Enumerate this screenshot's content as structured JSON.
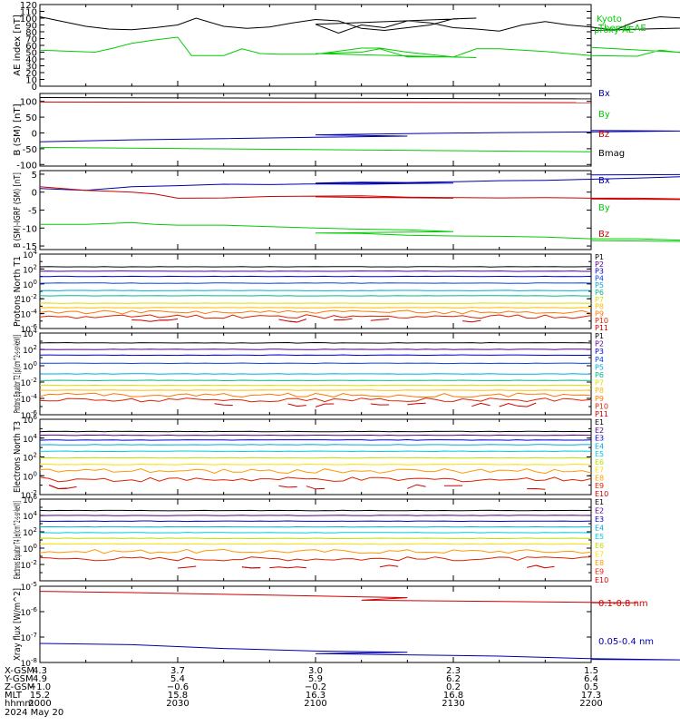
{
  "colors": {
    "black": "#000000",
    "green": "#00cc00",
    "blue": "#0000aa",
    "red": "#cc0000",
    "p_colors": [
      "#000000",
      "#550088",
      "#0000cc",
      "#0044ee",
      "#00aadd",
      "#00bb88",
      "#dddd00",
      "#ffbb00",
      "#ff7700",
      "#dd2200",
      "#cc0000"
    ],
    "e_colors": [
      "#000000",
      "#550088",
      "#0000cc",
      "#00aadd",
      "#00ccdd",
      "#bbdd00",
      "#ffdd00",
      "#ff9900",
      "#dd2200",
      "#cc0000"
    ]
  },
  "chart_data": [
    {
      "type": "line",
      "ylabel": "AE index [nT]",
      "ylim": [
        0,
        120
      ],
      "yticks": [
        "0",
        "10",
        "20",
        "30",
        "40",
        "50",
        "60",
        "70",
        "80",
        "90",
        "100",
        "110",
        "120"
      ],
      "legend": [
        "Kyoto proxy AE",
        "Themis AE"
      ],
      "series": [
        {
          "name": "Kyoto proxy AE",
          "x": [
            2000,
            2008,
            2012,
            2016,
            2020,
            2025,
            2030,
            2033,
            2040,
            2044,
            2048,
            2052,
            2060,
            2070,
            2074,
            2080,
            2090,
            2095,
            2100,
            2110,
            2114,
            2120,
            2130,
            2135,
            2140,
            2150,
            2155,
            2160,
            2170,
            2175,
            2180,
            2190,
            2195,
            2200
          ],
          "values": [
            53,
            51,
            50,
            56,
            63,
            68,
            72,
            45,
            45,
            55,
            48,
            47,
            47,
            56,
            56,
            50,
            43,
            42,
            48,
            50,
            55,
            43,
            43,
            55,
            55,
            51,
            48,
            45,
            44,
            53,
            49,
            44,
            44,
            57
          ]
        },
        {
          "name": "Themis AE",
          "x": [
            2000,
            2005,
            2010,
            2015,
            2020,
            2025,
            2030,
            2034,
            2040,
            2045,
            2050,
            2055,
            2060,
            2065,
            2070,
            2075,
            2080,
            2085,
            2090,
            2095,
            2100,
            2105,
            2110,
            2115,
            2120,
            2125,
            2130,
            2135,
            2140,
            2145,
            2150,
            2155,
            2160,
            2165,
            2170,
            2175,
            2180,
            2185,
            2190,
            2195,
            2200
          ],
          "values": [
            102,
            95,
            88,
            84,
            83,
            86,
            90,
            100,
            88,
            85,
            87,
            93,
            98,
            96,
            85,
            82,
            86,
            90,
            99,
            100,
            91,
            78,
            90,
            86,
            96,
            93,
            86,
            84,
            81,
            90,
            95,
            90,
            87,
            82,
            96,
            102,
            100,
            99,
            93,
            88,
            82
          ]
        }
      ]
    },
    {
      "type": "line",
      "ylabel": "B (SM) [nT]",
      "ylim": [
        -105,
        125
      ],
      "yticks": [
        "-100",
        "-50",
        "0",
        "50",
        "100"
      ],
      "legend": [
        "Bx",
        "By",
        "Bz",
        "Bmag"
      ],
      "series": [
        {
          "name": "Bx",
          "x": [
            2000,
            2020,
            2040,
            2060,
            2080,
            2100,
            2120,
            2140,
            2160,
            2180,
            2200
          ],
          "values": [
            -28,
            -22,
            -18,
            -14,
            -10,
            -6,
            -2,
            1,
            3,
            6,
            8
          ]
        },
        {
          "name": "By",
          "x": [
            2000,
            2200
          ],
          "values": [
            -46,
            -60
          ]
        },
        {
          "name": "Bz",
          "x": [
            2000,
            2200
          ],
          "values": [
            98,
            96
          ]
        },
        {
          "name": "Bmag",
          "x": [
            2000,
            2200
          ],
          "values": [
            112,
            108
          ]
        }
      ]
    },
    {
      "type": "line",
      "ylabel": "B (SM)-IGRF (SM) [nT]",
      "ylim": [
        -16,
        6
      ],
      "yticks": [
        "-15",
        "-10",
        "-5",
        "0",
        "5"
      ],
      "legend": [
        "Bx",
        "By",
        "Bz"
      ],
      "series": [
        {
          "name": "Bx",
          "x": [
            2000,
            2010,
            2020,
            2030,
            2040,
            2050,
            2060,
            2070,
            2080,
            2090,
            2100,
            2110,
            2120,
            2130,
            2140,
            2150,
            2160,
            2170,
            2180,
            2190,
            2195,
            2200
          ],
          "values": [
            1,
            0.5,
            1.5,
            1.8,
            2.2,
            2.1,
            2.3,
            2.2,
            2.4,
            2.5,
            2.5,
            2.8,
            2.7,
            2.9,
            3.2,
            3.3,
            3.6,
            3.9,
            4.3,
            4.5,
            5,
            4.8
          ]
        },
        {
          "name": "By",
          "x": [
            2000,
            2010,
            2020,
            2025,
            2030,
            2040,
            2050,
            2060,
            2070,
            2080,
            2090,
            2100,
            2110,
            2120,
            2130,
            2140,
            2150,
            2160,
            2170,
            2180,
            2190,
            2195,
            2200
          ],
          "values": [
            -9,
            -9,
            -8.5,
            -9,
            -9.2,
            -9.2,
            -9.6,
            -10,
            -10.3,
            -10.5,
            -11,
            -11.4,
            -11.5,
            -12,
            -12.2,
            -12.3,
            -12.5,
            -13,
            -13,
            -13.4,
            -13.6,
            -13.9,
            -13.5
          ]
        },
        {
          "name": "Bz",
          "x": [
            2000,
            2010,
            2020,
            2025,
            2030,
            2040,
            2050,
            2060,
            2070,
            2080,
            2090,
            2100,
            2110,
            2120,
            2130,
            2140,
            2150,
            2160,
            2170,
            2180,
            2190,
            2195,
            2200
          ],
          "values": [
            1.5,
            0.5,
            0,
            -0.5,
            -1.7,
            -1.6,
            -1.2,
            -1.1,
            -1,
            -1.4,
            -1.7,
            -1.3,
            -1.5,
            -1.4,
            -1.5,
            -1.6,
            -1.5,
            -1.7,
            -1.7,
            -1.9,
            -1.8,
            -2.2,
            -1.9
          ]
        }
      ]
    },
    {
      "type": "line",
      "ylabel": "Protons North T1",
      "yscale": "log",
      "ylim": [
        -6,
        4
      ],
      "yticks": [
        "10^-6",
        "10^-4",
        "10^-2",
        "10^0",
        "10^2",
        "10^4"
      ],
      "legend": [
        "P1",
        "P2",
        "P3",
        "P4",
        "P5",
        "P6",
        "P7",
        "P8",
        "P9",
        "P10",
        "P11"
      ],
      "series_log10_levels": [
        2.3,
        1.7,
        1.0,
        0.1,
        -0.9,
        -1.6,
        -2.6,
        -3.2,
        -3.8,
        -4.4,
        -4.9
      ]
    },
    {
      "type": "line",
      "ylabel": "Protons Equator T2 [p/(cm^2-s-sr-keV)]",
      "yscale": "log",
      "ylim": [
        -6,
        4
      ],
      "yticks": [
        "10^-6",
        "10^-4",
        "10^-2",
        "10^0",
        "10^2",
        "10^4"
      ],
      "legend": [
        "P1",
        "P2",
        "P3",
        "P4",
        "P5",
        "P6",
        "P7",
        "P8",
        "P9",
        "P10",
        "P11"
      ],
      "series_log10_levels": [
        2.8,
        2.0,
        1.3,
        0.3,
        -1.0,
        -1.8,
        -2.4,
        -3.0,
        -3.6,
        -4.2,
        -4.8
      ]
    },
    {
      "type": "line",
      "ylabel": "Electrons North T3",
      "yscale": "log",
      "ylim": [
        -2,
        6
      ],
      "yticks": [
        "10^-2",
        "10^0",
        "10^2",
        "10^4",
        "10^6"
      ],
      "legend": [
        "E1",
        "E2",
        "E3",
        "E4",
        "E5",
        "E6",
        "E7",
        "E8",
        "E9",
        "E10"
      ],
      "series_log10_levels": [
        4.7,
        4.3,
        3.8,
        3.3,
        2.6,
        1.9,
        1.2,
        0.5,
        -0.4,
        -1.2
      ]
    },
    {
      "type": "line",
      "ylabel": "Electrons Equator T4 [e/(cm^2-s-sr-keV)]",
      "yscale": "log",
      "ylim": [
        -4,
        6
      ],
      "yticks": [
        "10^-2",
        "10^0",
        "10^2",
        "10^4",
        "10^6"
      ],
      "legend": [
        "E1",
        "E2",
        "E3",
        "E4",
        "E5",
        "E6",
        "E7",
        "E8",
        "E9",
        "E10"
      ],
      "series_log10_levels": [
        4.6,
        4.0,
        3.3,
        2.6,
        1.9,
        1.2,
        0.5,
        -0.4,
        -1.3,
        -2.2
      ]
    },
    {
      "type": "line",
      "ylabel": "Xray flux [W/m^2]",
      "yscale": "log",
      "ylim": [
        -8,
        -5
      ],
      "yticks": [
        "10^-8",
        "10^-7",
        "10^-6",
        "10^-5"
      ],
      "legend": [
        "0.1-0.8 nm",
        "0.05-0.4 nm"
      ],
      "series": [
        {
          "name": "0.1-0.8 nm",
          "x": [
            2000,
            2020,
            2050,
            2080,
            2110,
            2140,
            2170,
            2200
          ],
          "values": [
            -5.2,
            -5.25,
            -5.35,
            -5.45,
            -5.55,
            -5.6,
            -5.65,
            -5.65
          ]
        },
        {
          "name": "0.05-0.4 nm",
          "x": [
            2000,
            2020,
            2040,
            2060,
            2080,
            2100,
            2120,
            2140,
            2160,
            2180,
            2200
          ],
          "values": [
            -7.25,
            -7.3,
            -7.45,
            -7.55,
            -7.6,
            -7.65,
            -7.7,
            -7.75,
            -7.85,
            -7.9,
            -7.88
          ]
        }
      ]
    }
  ],
  "orbit": {
    "row_labels": [
      "X-GSM",
      "Y-GSM",
      "Z-GSM",
      "MLT",
      "hhmm",
      "2024 May 20"
    ],
    "columns": [
      [
        "4.3",
        "4.9",
        "-1.0",
        "15.2",
        "2000"
      ],
      [
        "3.7",
        "5.4",
        "-0.6",
        "15.8",
        "2030"
      ],
      [
        "3.0",
        "5.9",
        "-0.2",
        "16.3",
        "2100"
      ],
      [
        "2.3",
        "6.2",
        "0.2",
        "16.8",
        "2130"
      ],
      [
        "1.5",
        "6.4",
        "0.5",
        "17.3",
        "2200"
      ]
    ]
  }
}
